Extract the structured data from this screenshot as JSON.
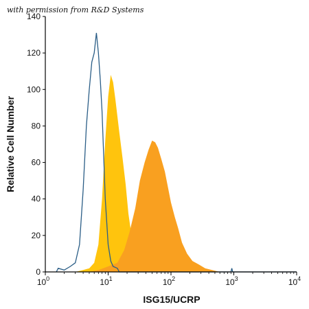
{
  "permission_note": "with permission from R&D Systems",
  "chart_data": {
    "type": "histogram",
    "xlabel": "ISG15/UCRP",
    "ylabel": "Relative Cell Number",
    "x_scale": "log",
    "xlim": [
      1,
      10000
    ],
    "ylim": [
      0,
      140
    ],
    "x_ticks": [
      {
        "value": 1,
        "base": "10",
        "exp": "0"
      },
      {
        "value": 10,
        "base": "10",
        "exp": "1"
      },
      {
        "value": 100,
        "base": "10",
        "exp": "2"
      },
      {
        "value": 1000,
        "base": "10",
        "exp": "3"
      },
      {
        "value": 10000,
        "base": "10",
        "exp": "4"
      }
    ],
    "y_ticks": [
      0,
      20,
      40,
      60,
      80,
      100,
      120,
      140
    ],
    "grid": false,
    "legend": "none",
    "series": [
      {
        "style": "outline",
        "color": "#2a5d86",
        "points": [
          [
            1.5,
            0
          ],
          [
            1.6,
            2
          ],
          [
            2,
            1
          ],
          [
            2.5,
            3
          ],
          [
            3,
            5
          ],
          [
            3.5,
            15
          ],
          [
            4,
            45
          ],
          [
            4.5,
            80
          ],
          [
            5,
            100
          ],
          [
            5.5,
            115
          ],
          [
            6,
            120
          ],
          [
            6.5,
            131
          ],
          [
            7,
            120
          ],
          [
            7.5,
            105
          ],
          [
            8,
            88
          ],
          [
            9,
            40
          ],
          [
            10,
            15
          ],
          [
            11,
            6
          ],
          [
            12,
            3
          ],
          [
            14,
            2
          ],
          [
            15,
            0
          ],
          [
            100,
            0
          ],
          [
            900,
            0
          ],
          [
            930,
            2
          ],
          [
            960,
            0
          ],
          [
            10000,
            0
          ]
        ]
      },
      {
        "style": "filled",
        "color": "#ffc40d",
        "points": [
          [
            3,
            0
          ],
          [
            4,
            1
          ],
          [
            5,
            2
          ],
          [
            6,
            5
          ],
          [
            7,
            15
          ],
          [
            8,
            40
          ],
          [
            9,
            72
          ],
          [
            10,
            96
          ],
          [
            11,
            108
          ],
          [
            12,
            104
          ],
          [
            13,
            95
          ],
          [
            15,
            77
          ],
          [
            17,
            62
          ],
          [
            19,
            48
          ],
          [
            21,
            32
          ],
          [
            24,
            18
          ],
          [
            28,
            9
          ],
          [
            35,
            4
          ],
          [
            45,
            1
          ],
          [
            60,
            0
          ]
        ]
      },
      {
        "style": "filled",
        "color": "#f9a020",
        "points": [
          [
            5,
            0
          ],
          [
            7,
            1
          ],
          [
            10,
            3
          ],
          [
            14,
            5
          ],
          [
            18,
            12
          ],
          [
            22,
            22
          ],
          [
            27,
            35
          ],
          [
            32,
            50
          ],
          [
            38,
            60
          ],
          [
            44,
            67
          ],
          [
            50,
            72
          ],
          [
            56,
            71
          ],
          [
            62,
            68
          ],
          [
            70,
            62
          ],
          [
            80,
            55
          ],
          [
            90,
            46
          ],
          [
            100,
            38
          ],
          [
            115,
            30
          ],
          [
            130,
            24
          ],
          [
            150,
            16
          ],
          [
            180,
            10
          ],
          [
            220,
            6
          ],
          [
            280,
            4
          ],
          [
            350,
            2
          ],
          [
            450,
            1
          ],
          [
            600,
            0
          ]
        ]
      }
    ]
  }
}
